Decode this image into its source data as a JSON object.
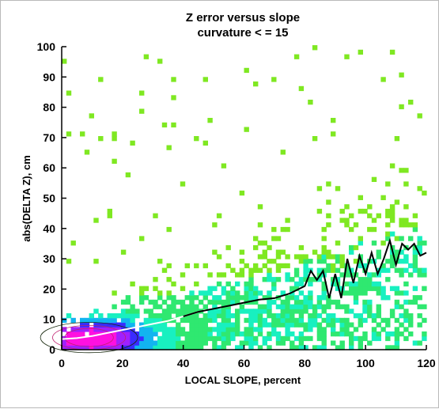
{
  "colors": {
    "density_low": "#7fe822",
    "density_mid": "#18f0c0",
    "density_high": "#3a2bff",
    "density_peak": "#ff10e0",
    "contour": "#1a2a10",
    "mean_line": "#000000",
    "mean_line_low": "#ffffff"
  },
  "chart_data": {
    "type": "heatmap",
    "title": "Z error versus slope",
    "subtitle": "curvature < = 15",
    "xlabel": "LOCAL SLOPE, percent",
    "ylabel": "abs(DELTA Z), cm",
    "xlim": [
      0,
      120
    ],
    "ylim": [
      0,
      100
    ],
    "xticks": [
      "0",
      "20",
      "40",
      "60",
      "80",
      "100",
      "120"
    ],
    "yticks": [
      "0",
      "10",
      "20",
      "30",
      "40",
      "50",
      "60",
      "70",
      "80",
      "90",
      "100"
    ],
    "grid": false,
    "legend": "none",
    "mean_curve": {
      "x": [
        0,
        5,
        10,
        15,
        20,
        25,
        30,
        35,
        40,
        45,
        50,
        55,
        60,
        65,
        70,
        75,
        80,
        82,
        84,
        86,
        88,
        90,
        92,
        94,
        96,
        98,
        100,
        102,
        104,
        106,
        108,
        110,
        112,
        114,
        116,
        118,
        120
      ],
      "y": [
        3.5,
        3.8,
        4.5,
        5.5,
        6.5,
        7.5,
        8.5,
        9.5,
        11,
        12.5,
        13.5,
        14.5,
        15.5,
        16.5,
        17,
        18.5,
        21,
        26,
        23,
        26,
        17,
        25,
        17,
        30,
        22,
        31,
        25,
        32,
        25,
        30,
        36,
        28,
        35,
        33,
        35,
        31,
        32
      ]
    }
  }
}
